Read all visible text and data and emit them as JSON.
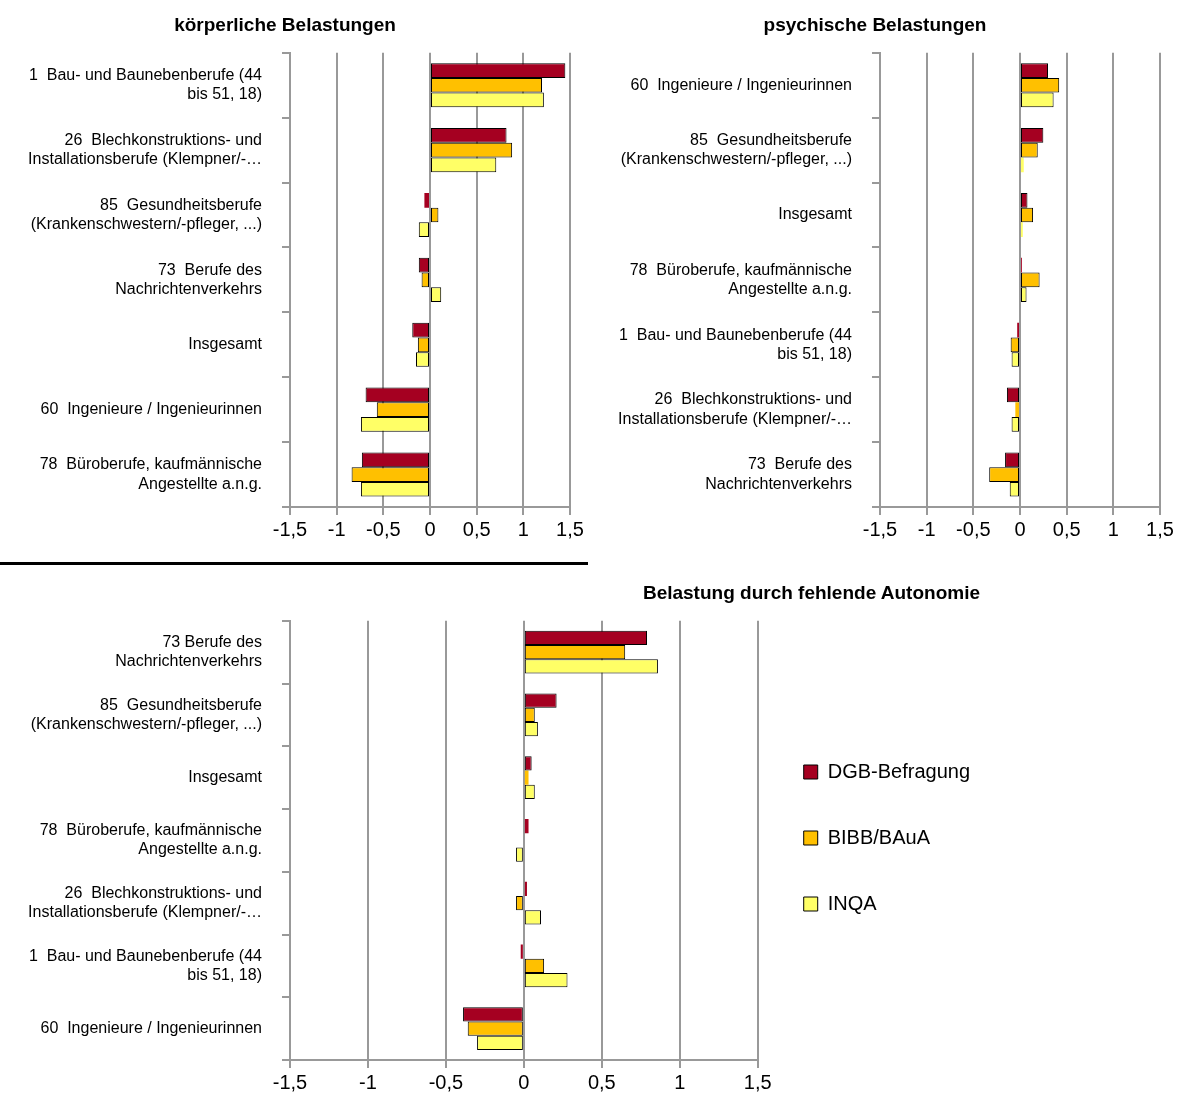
{
  "chart_data": [
    {
      "type": "bar",
      "orientation": "horizontal",
      "title": "körperliche Belastungen",
      "categories": [
        "1  Bau- und Baunebenberufe (44 bis 51, 18)",
        "26  Blechkonstruktions- und Installationsberufe (Klempner/-…",
        "85  Gesundheitsberufe (Krankenschwestern/-pfleger, ...)",
        "73  Berufe des Nachrichtenverkehrs",
        "Insgesamt",
        "60  Ingenieure / Ingenieurinnen",
        "78  Büroberufe, kaufmännische Angestellte a.n.g."
      ],
      "series": [
        {
          "color": "#a50021",
          "values": [
            1.45,
            0.82,
            -0.06,
            -0.12,
            -0.19,
            -0.69,
            -0.73
          ]
        },
        {
          "color": "#ffc000",
          "values": [
            1.2,
            0.88,
            0.09,
            -0.09,
            -0.13,
            -0.57,
            -0.84
          ]
        },
        {
          "color": "#ffff66",
          "values": [
            1.22,
            0.71,
            -0.12,
            0.12,
            -0.15,
            -0.74,
            -0.74
          ]
        }
      ],
      "xlim": [
        -1.5,
        1.5
      ],
      "xticks": [
        {
          "value": -1.5,
          "label": "-1,5"
        },
        -1,
        {
          "value": -0.5,
          "label": "-0,5"
        },
        0,
        {
          "value": 0.5,
          "label": "0,5"
        },
        1,
        {
          "value": 1.5,
          "label": "1,5"
        }
      ],
      "grid": "x",
      "legend": false
    },
    {
      "type": "bar",
      "orientation": "horizontal",
      "title": "psychische Belastungen",
      "categories": [
        "60  Ingenieure / Ingenieurinnen",
        "85  Gesundheitsberufe (Krankenschwestern/-pfleger, ...)",
        "Insgesamt",
        "78  Büroberufe, kaufmännische Angestellte a.n.g.",
        "1  Bau- und Baunebenberufe (44 bis 51, 18)",
        "26  Blechkonstruktions- und Installationsberufe (Klempner/-…",
        "73  Berufe des Nachrichtenverkehrs"
      ],
      "series": [
        {
          "color": "#a50021",
          "values": [
            0.3,
            0.25,
            0.08,
            0.02,
            -0.03,
            -0.14,
            -0.16
          ]
        },
        {
          "color": "#ffc000",
          "values": [
            0.42,
            0.19,
            0.14,
            0.21,
            -0.1,
            -0.05,
            -0.33
          ]
        },
        {
          "color": "#ffff66",
          "values": [
            0.36,
            0.04,
            0.03,
            0.07,
            -0.09,
            -0.09,
            -0.11
          ]
        }
      ],
      "xlim": [
        -1.5,
        1.5
      ],
      "xticks": [
        {
          "value": -1.5,
          "label": "-1,5"
        },
        -1,
        {
          "value": -0.5,
          "label": "-0,5"
        },
        0,
        {
          "value": 0.5,
          "label": "0,5"
        },
        1,
        {
          "value": 1.5,
          "label": "1,5"
        }
      ],
      "grid": "x",
      "legend": false
    },
    {
      "type": "bar",
      "orientation": "horizontal",
      "title": "Belastung durch fehlende Autonomie",
      "categories": [
        "73 Berufe des Nachrichtenverkehrs",
        "85  Gesundheitsberufe (Krankenschwestern/-pfleger, ...)",
        "Insgesamt",
        "78  Büroberufe, kaufmännische Angestellte a.n.g.",
        "26  Blechkonstruktions- und Installationsberufe (Klempner/-…",
        "1  Bau- und Baunebenberufe (44 bis 51, 18)",
        "60  Ingenieure / Ingenieurinnen"
      ],
      "series": [
        {
          "name": "DGB-Befragung",
          "color": "#a50021",
          "values": [
            0.79,
            0.21,
            0.05,
            0.03,
            0.02,
            -0.02,
            -0.39
          ]
        },
        {
          "name": "BIBB/BAuA",
          "color": "#ffc000",
          "values": [
            0.65,
            0.07,
            0.03,
            0,
            -0.05,
            0.13,
            -0.36
          ]
        },
        {
          "name": "INQA",
          "color": "#ffff66",
          "values": [
            0.86,
            0.09,
            0.07,
            -0.05,
            0.11,
            0.28,
            -0.3
          ]
        }
      ],
      "xlim": [
        -1.5,
        1.5
      ],
      "xticks": [
        {
          "value": -1.5,
          "label": "-1,5"
        },
        -1,
        {
          "value": -0.5,
          "label": "-0,5"
        },
        0,
        {
          "value": 0.5,
          "label": "0,5"
        },
        1,
        {
          "value": 1.5,
          "label": "1,5"
        }
      ],
      "grid": "x",
      "legend": "right"
    }
  ]
}
